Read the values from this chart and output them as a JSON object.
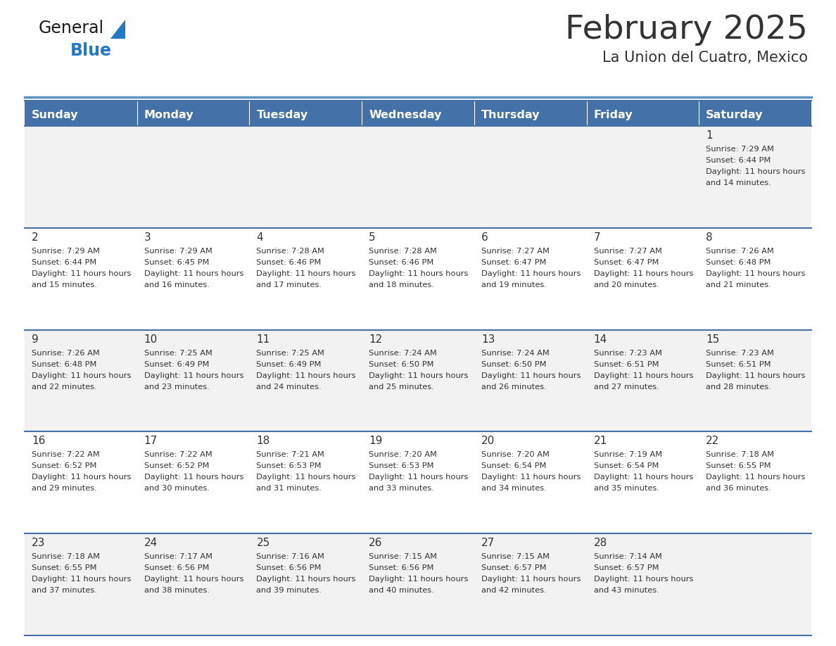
{
  "title": "February 2025",
  "subtitle": "La Union del Cuatro, Mexico",
  "header_color": "#4472A8",
  "header_text_color": "#FFFFFF",
  "days_of_week": [
    "Sunday",
    "Monday",
    "Tuesday",
    "Wednesday",
    "Thursday",
    "Friday",
    "Saturday"
  ],
  "background_color": "#FFFFFF",
  "cell_bg_light": "#F2F2F2",
  "cell_bg_white": "#FFFFFF",
  "border_color": "#4472A8",
  "text_color": "#333333",
  "logo_general_color": "#1a1a1a",
  "logo_blue_color": "#2479C7",
  "logo_triangle_color": "#2479C7",
  "calendar": [
    [
      {
        "day": "",
        "sunrise": "",
        "sunset": "",
        "daylight": ""
      },
      {
        "day": "",
        "sunrise": "",
        "sunset": "",
        "daylight": ""
      },
      {
        "day": "",
        "sunrise": "",
        "sunset": "",
        "daylight": ""
      },
      {
        "day": "",
        "sunrise": "",
        "sunset": "",
        "daylight": ""
      },
      {
        "day": "",
        "sunrise": "",
        "sunset": "",
        "daylight": ""
      },
      {
        "day": "",
        "sunrise": "",
        "sunset": "",
        "daylight": ""
      },
      {
        "day": "1",
        "sunrise": "7:29 AM",
        "sunset": "6:44 PM",
        "daylight": "11 hours and 14 minutes."
      }
    ],
    [
      {
        "day": "2",
        "sunrise": "7:29 AM",
        "sunset": "6:44 PM",
        "daylight": "11 hours and 15 minutes."
      },
      {
        "day": "3",
        "sunrise": "7:29 AM",
        "sunset": "6:45 PM",
        "daylight": "11 hours and 16 minutes."
      },
      {
        "day": "4",
        "sunrise": "7:28 AM",
        "sunset": "6:46 PM",
        "daylight": "11 hours and 17 minutes."
      },
      {
        "day": "5",
        "sunrise": "7:28 AM",
        "sunset": "6:46 PM",
        "daylight": "11 hours and 18 minutes."
      },
      {
        "day": "6",
        "sunrise": "7:27 AM",
        "sunset": "6:47 PM",
        "daylight": "11 hours and 19 minutes."
      },
      {
        "day": "7",
        "sunrise": "7:27 AM",
        "sunset": "6:47 PM",
        "daylight": "11 hours and 20 minutes."
      },
      {
        "day": "8",
        "sunrise": "7:26 AM",
        "sunset": "6:48 PM",
        "daylight": "11 hours and 21 minutes."
      }
    ],
    [
      {
        "day": "9",
        "sunrise": "7:26 AM",
        "sunset": "6:48 PM",
        "daylight": "11 hours and 22 minutes."
      },
      {
        "day": "10",
        "sunrise": "7:25 AM",
        "sunset": "6:49 PM",
        "daylight": "11 hours and 23 minutes."
      },
      {
        "day": "11",
        "sunrise": "7:25 AM",
        "sunset": "6:49 PM",
        "daylight": "11 hours and 24 minutes."
      },
      {
        "day": "12",
        "sunrise": "7:24 AM",
        "sunset": "6:50 PM",
        "daylight": "11 hours and 25 minutes."
      },
      {
        "day": "13",
        "sunrise": "7:24 AM",
        "sunset": "6:50 PM",
        "daylight": "11 hours and 26 minutes."
      },
      {
        "day": "14",
        "sunrise": "7:23 AM",
        "sunset": "6:51 PM",
        "daylight": "11 hours and 27 minutes."
      },
      {
        "day": "15",
        "sunrise": "7:23 AM",
        "sunset": "6:51 PM",
        "daylight": "11 hours and 28 minutes."
      }
    ],
    [
      {
        "day": "16",
        "sunrise": "7:22 AM",
        "sunset": "6:52 PM",
        "daylight": "11 hours and 29 minutes."
      },
      {
        "day": "17",
        "sunrise": "7:22 AM",
        "sunset": "6:52 PM",
        "daylight": "11 hours and 30 minutes."
      },
      {
        "day": "18",
        "sunrise": "7:21 AM",
        "sunset": "6:53 PM",
        "daylight": "11 hours and 31 minutes."
      },
      {
        "day": "19",
        "sunrise": "7:20 AM",
        "sunset": "6:53 PM",
        "daylight": "11 hours and 33 minutes."
      },
      {
        "day": "20",
        "sunrise": "7:20 AM",
        "sunset": "6:54 PM",
        "daylight": "11 hours and 34 minutes."
      },
      {
        "day": "21",
        "sunrise": "7:19 AM",
        "sunset": "6:54 PM",
        "daylight": "11 hours and 35 minutes."
      },
      {
        "day": "22",
        "sunrise": "7:18 AM",
        "sunset": "6:55 PM",
        "daylight": "11 hours and 36 minutes."
      }
    ],
    [
      {
        "day": "23",
        "sunrise": "7:18 AM",
        "sunset": "6:55 PM",
        "daylight": "11 hours and 37 minutes."
      },
      {
        "day": "24",
        "sunrise": "7:17 AM",
        "sunset": "6:56 PM",
        "daylight": "11 hours and 38 minutes."
      },
      {
        "day": "25",
        "sunrise": "7:16 AM",
        "sunset": "6:56 PM",
        "daylight": "11 hours and 39 minutes."
      },
      {
        "day": "26",
        "sunrise": "7:15 AM",
        "sunset": "6:56 PM",
        "daylight": "11 hours and 40 minutes."
      },
      {
        "day": "27",
        "sunrise": "7:15 AM",
        "sunset": "6:57 PM",
        "daylight": "11 hours and 42 minutes."
      },
      {
        "day": "28",
        "sunrise": "7:14 AM",
        "sunset": "6:57 PM",
        "daylight": "11 hours and 43 minutes."
      },
      {
        "day": "",
        "sunrise": "",
        "sunset": "",
        "daylight": ""
      }
    ]
  ]
}
